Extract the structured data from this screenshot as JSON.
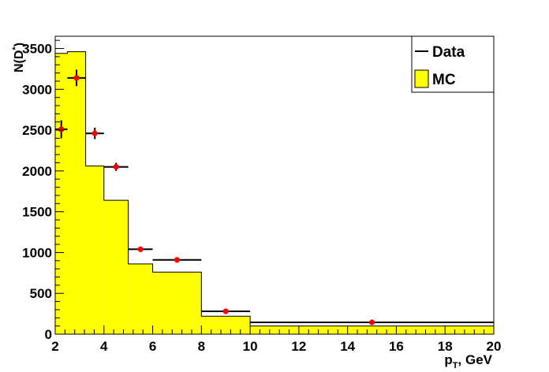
{
  "chart_data": {
    "type": "histogram",
    "xlabel": {
      "main": "p",
      "sub": "T",
      "rest": ", GeV"
    },
    "ylabel": {
      "main": "N(D",
      "sup": "*",
      "rest": ")"
    },
    "xlim": [
      2,
      20
    ],
    "ylim": [
      0,
      3650
    ],
    "x_ticks": [
      2,
      4,
      6,
      8,
      10,
      12,
      14,
      16,
      18,
      20
    ],
    "y_ticks": [
      0,
      500,
      1000,
      1500,
      2000,
      2500,
      3000,
      3500
    ],
    "grid": false,
    "legend": {
      "placement": "top-right",
      "entries": [
        {
          "label": "Data",
          "kind": "line",
          "color": "#000000"
        },
        {
          "label": "MC",
          "kind": "fill",
          "color": "#ffff00"
        }
      ]
    },
    "series": [
      {
        "name": "MC",
        "kind": "histogram",
        "color": "#ffff00",
        "bins": [
          {
            "x0": 2.0,
            "x1": 2.5,
            "y": 3440
          },
          {
            "x0": 2.5,
            "x1": 3.25,
            "y": 3460
          },
          {
            "x0": 3.25,
            "x1": 4.0,
            "y": 2060
          },
          {
            "x0": 4.0,
            "x1": 5.0,
            "y": 1640
          },
          {
            "x0": 5.0,
            "x1": 6.0,
            "y": 860
          },
          {
            "x0": 6.0,
            "x1": 8.0,
            "y": 760
          },
          {
            "x0": 8.0,
            "x1": 10.0,
            "y": 220
          },
          {
            "x0": 10.0,
            "x1": 20.0,
            "y": 100
          }
        ]
      },
      {
        "name": "Data",
        "kind": "points",
        "color": "#ff0000",
        "points": [
          {
            "x": 2.25,
            "xerr": 0.25,
            "y": 2510,
            "yerr": 110
          },
          {
            "x": 2.875,
            "xerr": 0.375,
            "y": 3140,
            "yerr": 100
          },
          {
            "x": 3.625,
            "xerr": 0.375,
            "y": 2460,
            "yerr": 70
          },
          {
            "x": 4.5,
            "xerr": 0.5,
            "y": 2050,
            "yerr": 50
          },
          {
            "x": 5.5,
            "xerr": 0.5,
            "y": 1040,
            "yerr": 30
          },
          {
            "x": 7.0,
            "xerr": 1.0,
            "y": 910,
            "yerr": 20
          },
          {
            "x": 9.0,
            "xerr": 1.0,
            "y": 280,
            "yerr": 10
          },
          {
            "x": 15.0,
            "xerr": 5.0,
            "y": 145,
            "yerr": 5
          }
        ]
      }
    ]
  }
}
